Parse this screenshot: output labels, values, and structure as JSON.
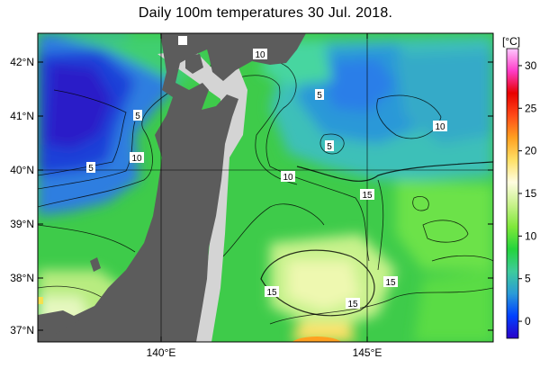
{
  "title": "Daily 100m temperatures 30 Jul. 2018.",
  "lat_labels": [
    "42°N",
    "41°N",
    "40°N",
    "39°N",
    "38°N",
    "37°N"
  ],
  "lon_labels": [
    "140°E",
    "145°E"
  ],
  "colorbar": {
    "unit": "[°C]",
    "ticks": [
      "30",
      "25",
      "20",
      "15",
      "10",
      "5",
      "0"
    ],
    "min": -2,
    "max": 32,
    "stops": [
      "#2a00c8",
      "#0040ff",
      "#2a9ad8",
      "#3ecb9c",
      "#24d43c",
      "#7fe83a",
      "#c8f28c",
      "#fffde0",
      "#ffe066",
      "#ffa020",
      "#ff4a18",
      "#e80000",
      "#ff3cc8",
      "#ffc8ff"
    ]
  },
  "contour_labels": [
    "10",
    "5",
    "5",
    "5",
    "5",
    "10",
    "10",
    "10",
    "15",
    "15",
    "15",
    "15"
  ],
  "colors": {
    "land": "#5c5c5c",
    "coast_fill": "#d4d4d4"
  }
}
